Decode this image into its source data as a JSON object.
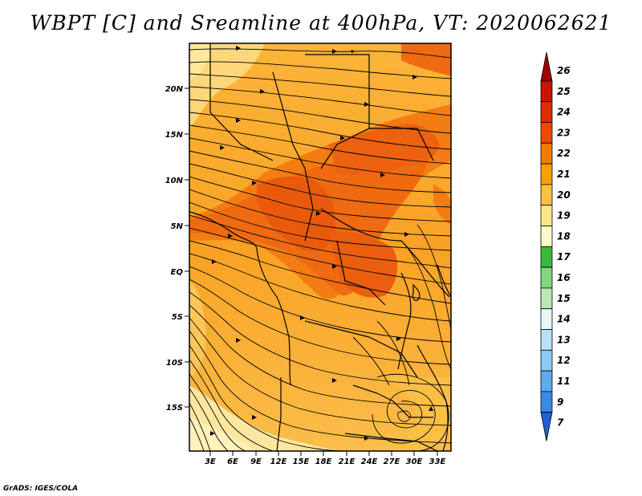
{
  "title": "WBPT [C] and Sreamline at 400hPa, VT: 2020062621",
  "credit": "GrADS: IGES/COLA",
  "map": {
    "lat_labels": [
      "20N",
      "15N",
      "10N",
      "5N",
      "EQ",
      "5S",
      "10S",
      "15S"
    ],
    "lon_labels": [
      "3E",
      "6E",
      "9E",
      "12E",
      "15E",
      "18E",
      "21E",
      "24E",
      "27E",
      "30E",
      "33E"
    ]
  },
  "colorbar": {
    "labels": [
      "26",
      "25",
      "24",
      "23",
      "22",
      "21",
      "20",
      "19",
      "18",
      "17",
      "16",
      "15",
      "14",
      "13",
      "12",
      "11",
      "9",
      "7"
    ],
    "colors": [
      "#a00000",
      "#c81400",
      "#e02a00",
      "#ef4800",
      "#f57a00",
      "#f9a000",
      "#fcc040",
      "#fee78a",
      "#fff8c8",
      "#38bb38",
      "#7fd77f",
      "#b9eab4",
      "#e6f8f6",
      "#b8e2f8",
      "#8ccaf6",
      "#5fa9f0",
      "#3a88e8",
      "#1f5fd8"
    ]
  }
}
